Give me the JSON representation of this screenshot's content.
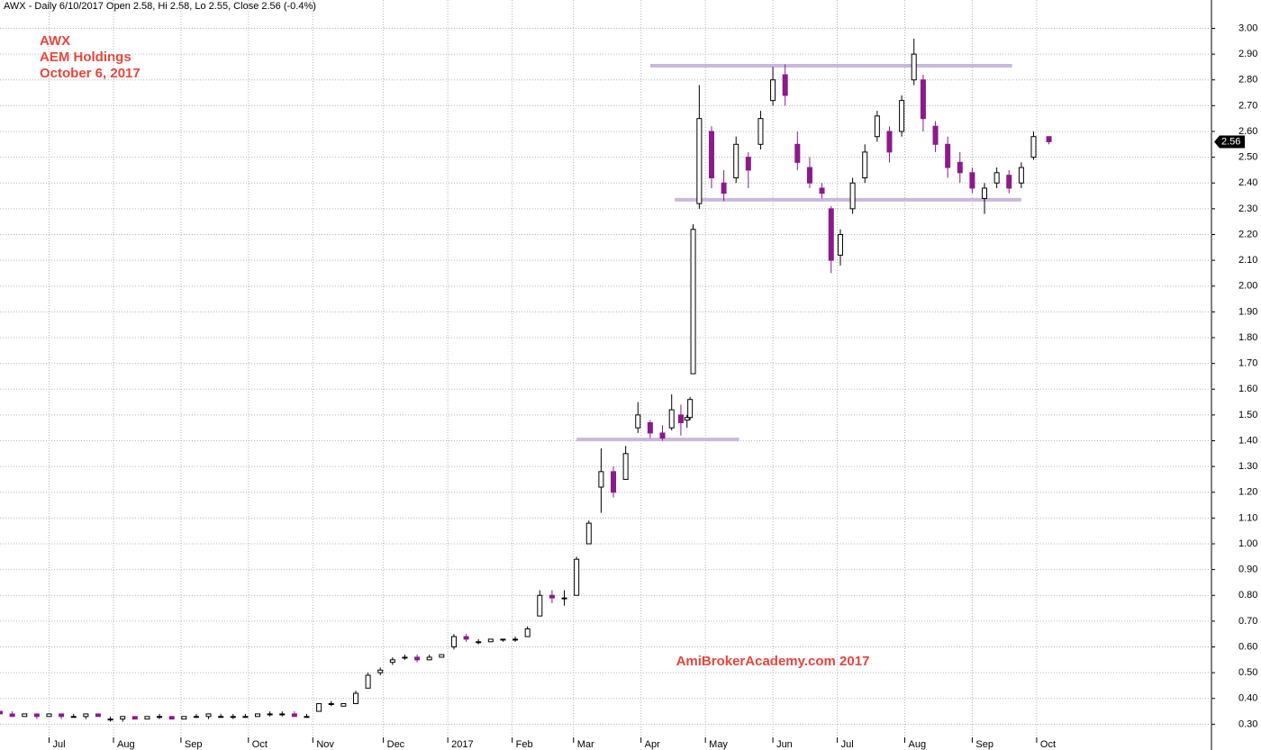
{
  "chart_data": {
    "type": "candlestick",
    "header": "AWX - Daily 6/10/2017 Open 2.58, Hi 2.58, Lo 2.55, Close 2.56 (-0.4%)",
    "annotations": [
      "AWX",
      "AEM Holdings",
      "October 6, 2017"
    ],
    "watermark": "AmiBrokerAcademy.com 2017",
    "up_color": "#ffffff",
    "down_color": "#8b1a8b",
    "level_color": "#c9b8dc",
    "grid": true,
    "xlim": [
      0,
      395
    ],
    "ylim": [
      0.2,
      3.11
    ],
    "xticks": [
      {
        "value": 16,
        "label": "Jul"
      },
      {
        "value": 37,
        "label": "Aug"
      },
      {
        "value": 59,
        "label": "Sep"
      },
      {
        "value": 81,
        "label": "Oct"
      },
      {
        "value": 102,
        "label": "Nov"
      },
      {
        "value": 125,
        "label": "Dec"
      },
      {
        "value": 146,
        "label": "2017"
      },
      {
        "value": 167,
        "label": "Feb"
      },
      {
        "value": 187,
        "label": "Mar"
      },
      {
        "value": 209,
        "label": "Apr"
      },
      {
        "value": 230,
        "label": "May"
      },
      {
        "value": 252,
        "label": "Jun"
      },
      {
        "value": 273,
        "label": "Jul"
      },
      {
        "value": 295,
        "label": "Aug"
      },
      {
        "value": 317,
        "label": "Sep"
      },
      {
        "value": 338,
        "label": "Oct"
      }
    ],
    "yticks": [
      {
        "value": 0.3,
        "label": "0.30"
      },
      {
        "value": 0.4,
        "label": "0.40"
      },
      {
        "value": 0.5,
        "label": "0.50"
      },
      {
        "value": 0.6,
        "label": "0.60"
      },
      {
        "value": 0.7,
        "label": "0.70"
      },
      {
        "value": 0.8,
        "label": "0.80"
      },
      {
        "value": 0.9,
        "label": "0.90"
      },
      {
        "value": 1.0,
        "label": "1.00"
      },
      {
        "value": 1.1,
        "label": "1.10"
      },
      {
        "value": 1.2,
        "label": "1.20"
      },
      {
        "value": 1.3,
        "label": "1.30"
      },
      {
        "value": 1.4,
        "label": "1.40"
      },
      {
        "value": 1.5,
        "label": "1.50"
      },
      {
        "value": 1.6,
        "label": "1.60"
      },
      {
        "value": 1.7,
        "label": "1.70"
      },
      {
        "value": 1.8,
        "label": "1.80"
      },
      {
        "value": 1.9,
        "label": "1.90"
      },
      {
        "value": 2.0,
        "label": "2.00"
      },
      {
        "value": 2.1,
        "label": "2.10"
      },
      {
        "value": 2.2,
        "label": "2.20"
      },
      {
        "value": 2.3,
        "label": "2.30"
      },
      {
        "value": 2.4,
        "label": "2.40"
      },
      {
        "value": 2.5,
        "label": "2.50"
      },
      {
        "value": 2.6,
        "label": "2.60"
      },
      {
        "value": 2.7,
        "label": "2.70"
      },
      {
        "value": 2.8,
        "label": "2.80"
      },
      {
        "value": 2.9,
        "label": "2.90"
      },
      {
        "value": 3.0,
        "label": "3.00"
      }
    ],
    "levels": [
      {
        "value": 1.405,
        "x": [
          188,
          241
        ]
      },
      {
        "value": 2.335,
        "x": [
          220,
          333
        ]
      },
      {
        "value": 2.855,
        "x": [
          212,
          330
        ]
      }
    ],
    "candles": [
      {
        "x": 0,
        "open": 0.35,
        "high": 0.35,
        "low": 0.34,
        "close": 0.34
      },
      {
        "x": 4,
        "open": 0.34,
        "high": 0.35,
        "low": 0.33,
        "close": 0.33
      },
      {
        "x": 8,
        "open": 0.33,
        "high": 0.34,
        "low": 0.33,
        "close": 0.34
      },
      {
        "x": 12,
        "open": 0.34,
        "high": 0.34,
        "low": 0.32,
        "close": 0.33
      },
      {
        "x": 16,
        "open": 0.33,
        "high": 0.34,
        "low": 0.33,
        "close": 0.34
      },
      {
        "x": 20,
        "open": 0.34,
        "high": 0.34,
        "low": 0.32,
        "close": 0.33
      },
      {
        "x": 24,
        "open": 0.33,
        "high": 0.34,
        "low": 0.33,
        "close": 0.33
      },
      {
        "x": 28,
        "open": 0.33,
        "high": 0.34,
        "low": 0.32,
        "close": 0.34
      },
      {
        "x": 32,
        "open": 0.34,
        "high": 0.34,
        "low": 0.33,
        "close": 0.33
      },
      {
        "x": 36,
        "open": 0.32,
        "high": 0.33,
        "low": 0.31,
        "close": 0.32
      },
      {
        "x": 40,
        "open": 0.32,
        "high": 0.33,
        "low": 0.31,
        "close": 0.33
      },
      {
        "x": 44,
        "open": 0.33,
        "high": 0.33,
        "low": 0.32,
        "close": 0.32
      },
      {
        "x": 48,
        "open": 0.32,
        "high": 0.33,
        "low": 0.32,
        "close": 0.33
      },
      {
        "x": 52,
        "open": 0.33,
        "high": 0.34,
        "low": 0.32,
        "close": 0.33
      },
      {
        "x": 56,
        "open": 0.33,
        "high": 0.33,
        "low": 0.32,
        "close": 0.32
      },
      {
        "x": 60,
        "open": 0.32,
        "high": 0.33,
        "low": 0.32,
        "close": 0.33
      },
      {
        "x": 64,
        "open": 0.33,
        "high": 0.34,
        "low": 0.33,
        "close": 0.33
      },
      {
        "x": 68,
        "open": 0.33,
        "high": 0.34,
        "low": 0.32,
        "close": 0.34
      },
      {
        "x": 72,
        "open": 0.33,
        "high": 0.34,
        "low": 0.33,
        "close": 0.33
      },
      {
        "x": 76,
        "open": 0.33,
        "high": 0.34,
        "low": 0.32,
        "close": 0.33
      },
      {
        "x": 80,
        "open": 0.33,
        "high": 0.34,
        "low": 0.33,
        "close": 0.33
      },
      {
        "x": 84,
        "open": 0.33,
        "high": 0.34,
        "low": 0.33,
        "close": 0.34
      },
      {
        "x": 88,
        "open": 0.34,
        "high": 0.35,
        "low": 0.33,
        "close": 0.34
      },
      {
        "x": 92,
        "open": 0.34,
        "high": 0.35,
        "low": 0.33,
        "close": 0.34
      },
      {
        "x": 96,
        "open": 0.34,
        "high": 0.35,
        "low": 0.33,
        "close": 0.33
      },
      {
        "x": 100,
        "open": 0.33,
        "high": 0.34,
        "low": 0.33,
        "close": 0.33
      },
      {
        "x": 104,
        "open": 0.35,
        "high": 0.38,
        "low": 0.35,
        "close": 0.38
      },
      {
        "x": 108,
        "open": 0.38,
        "high": 0.39,
        "low": 0.37,
        "close": 0.38
      },
      {
        "x": 112,
        "open": 0.37,
        "high": 0.38,
        "low": 0.37,
        "close": 0.38
      },
      {
        "x": 116,
        "open": 0.38,
        "high": 0.43,
        "low": 0.38,
        "close": 0.42
      },
      {
        "x": 120,
        "open": 0.44,
        "high": 0.5,
        "low": 0.44,
        "close": 0.49
      },
      {
        "x": 124,
        "open": 0.5,
        "high": 0.52,
        "low": 0.49,
        "close": 0.51
      },
      {
        "x": 128,
        "open": 0.54,
        "high": 0.56,
        "low": 0.53,
        "close": 0.55
      },
      {
        "x": 132,
        "open": 0.56,
        "high": 0.57,
        "low": 0.55,
        "close": 0.56
      },
      {
        "x": 136,
        "open": 0.56,
        "high": 0.57,
        "low": 0.54,
        "close": 0.55
      },
      {
        "x": 140,
        "open": 0.55,
        "high": 0.57,
        "low": 0.55,
        "close": 0.56
      },
      {
        "x": 144,
        "open": 0.56,
        "high": 0.57,
        "low": 0.56,
        "close": 0.57
      },
      {
        "x": 148,
        "open": 0.6,
        "high": 0.65,
        "low": 0.59,
        "close": 0.64
      },
      {
        "x": 152,
        "open": 0.64,
        "high": 0.65,
        "low": 0.62,
        "close": 0.63
      },
      {
        "x": 156,
        "open": 0.62,
        "high": 0.63,
        "low": 0.61,
        "close": 0.62
      },
      {
        "x": 160,
        "open": 0.62,
        "high": 0.63,
        "low": 0.62,
        "close": 0.63
      },
      {
        "x": 164,
        "open": 0.63,
        "high": 0.63,
        "low": 0.62,
        "close": 0.63
      },
      {
        "x": 168,
        "open": 0.63,
        "high": 0.64,
        "low": 0.62,
        "close": 0.63
      },
      {
        "x": 172,
        "open": 0.64,
        "high": 0.68,
        "low": 0.64,
        "close": 0.67
      },
      {
        "x": 176,
        "open": 0.72,
        "high": 0.82,
        "low": 0.72,
        "close": 0.8
      },
      {
        "x": 180,
        "open": 0.8,
        "high": 0.82,
        "low": 0.77,
        "close": 0.79
      },
      {
        "x": 184,
        "open": 0.79,
        "high": 0.82,
        "low": 0.76,
        "close": 0.79
      },
      {
        "x": 188,
        "open": 0.8,
        "high": 0.95,
        "low": 0.8,
        "close": 0.94
      },
      {
        "x": 192,
        "open": 1.0,
        "high": 1.09,
        "low": 1.0,
        "close": 1.08
      },
      {
        "x": 196,
        "open": 1.22,
        "high": 1.37,
        "low": 1.12,
        "close": 1.28
      },
      {
        "x": 200,
        "open": 1.28,
        "high": 1.3,
        "low": 1.18,
        "close": 1.2
      },
      {
        "x": 204,
        "open": 1.25,
        "high": 1.38,
        "low": 1.25,
        "close": 1.35
      },
      {
        "x": 208,
        "open": 1.45,
        "high": 1.55,
        "low": 1.43,
        "close": 1.5
      },
      {
        "x": 212,
        "open": 1.47,
        "high": 1.48,
        "low": 1.41,
        "close": 1.43
      },
      {
        "x": 216,
        "open": 1.43,
        "high": 1.46,
        "low": 1.4,
        "close": 1.41
      },
      {
        "x": 219,
        "open": 1.45,
        "high": 1.58,
        "low": 1.44,
        "close": 1.52
      },
      {
        "x": 222,
        "open": 1.5,
        "high": 1.54,
        "low": 1.42,
        "close": 1.47
      },
      {
        "x": 224,
        "open": 1.48,
        "high": 1.5,
        "low": 1.45,
        "close": 1.49
      },
      {
        "x": 225,
        "open": 1.49,
        "high": 1.57,
        "low": 1.48,
        "close": 1.56
      },
      {
        "x": 226,
        "open": 1.66,
        "high": 2.24,
        "low": 1.66,
        "close": 2.22
      },
      {
        "x": 228,
        "open": 2.32,
        "high": 2.78,
        "low": 2.3,
        "close": 2.65
      },
      {
        "x": 232,
        "open": 2.6,
        "high": 2.62,
        "low": 2.38,
        "close": 2.42
      },
      {
        "x": 236,
        "open": 2.4,
        "high": 2.45,
        "low": 2.33,
        "close": 2.36
      },
      {
        "x": 240,
        "open": 2.42,
        "high": 2.58,
        "low": 2.4,
        "close": 2.55
      },
      {
        "x": 244,
        "open": 2.5,
        "high": 2.52,
        "low": 2.38,
        "close": 2.45
      },
      {
        "x": 248,
        "open": 2.55,
        "high": 2.68,
        "low": 2.53,
        "close": 2.65
      },
      {
        "x": 252,
        "open": 2.72,
        "high": 2.85,
        "low": 2.7,
        "close": 2.8
      },
      {
        "x": 256,
        "open": 2.82,
        "high": 2.86,
        "low": 2.7,
        "close": 2.74
      },
      {
        "x": 260,
        "open": 2.55,
        "high": 2.6,
        "low": 2.45,
        "close": 2.48
      },
      {
        "x": 264,
        "open": 2.46,
        "high": 2.5,
        "low": 2.38,
        "close": 2.4
      },
      {
        "x": 268,
        "open": 2.38,
        "high": 2.4,
        "low": 2.34,
        "close": 2.36
      },
      {
        "x": 271,
        "open": 2.3,
        "high": 2.31,
        "low": 2.05,
        "close": 2.1
      },
      {
        "x": 274,
        "open": 2.12,
        "high": 2.22,
        "low": 2.08,
        "close": 2.2
      },
      {
        "x": 278,
        "open": 2.3,
        "high": 2.42,
        "low": 2.28,
        "close": 2.4
      },
      {
        "x": 282,
        "open": 2.42,
        "high": 2.55,
        "low": 2.4,
        "close": 2.52
      },
      {
        "x": 286,
        "open": 2.58,
        "high": 2.68,
        "low": 2.56,
        "close": 2.66
      },
      {
        "x": 290,
        "open": 2.6,
        "high": 2.62,
        "low": 2.48,
        "close": 2.52
      },
      {
        "x": 294,
        "open": 2.6,
        "high": 2.74,
        "low": 2.58,
        "close": 2.72
      },
      {
        "x": 298,
        "open": 2.8,
        "high": 2.96,
        "low": 2.78,
        "close": 2.9
      },
      {
        "x": 301,
        "open": 2.8,
        "high": 2.82,
        "low": 2.6,
        "close": 2.65
      },
      {
        "x": 305,
        "open": 2.62,
        "high": 2.64,
        "low": 2.52,
        "close": 2.55
      },
      {
        "x": 309,
        "open": 2.55,
        "high": 2.58,
        "low": 2.42,
        "close": 2.46
      },
      {
        "x": 313,
        "open": 2.48,
        "high": 2.52,
        "low": 2.4,
        "close": 2.44
      },
      {
        "x": 317,
        "open": 2.44,
        "high": 2.46,
        "low": 2.36,
        "close": 2.38
      },
      {
        "x": 321,
        "open": 2.34,
        "high": 2.4,
        "low": 2.28,
        "close": 2.38
      },
      {
        "x": 325,
        "open": 2.4,
        "high": 2.46,
        "low": 2.38,
        "close": 2.44
      },
      {
        "x": 329,
        "open": 2.43,
        "high": 2.45,
        "low": 2.36,
        "close": 2.38
      },
      {
        "x": 333,
        "open": 2.4,
        "high": 2.48,
        "low": 2.38,
        "close": 2.46
      },
      {
        "x": 337,
        "open": 2.5,
        "high": 2.6,
        "low": 2.49,
        "close": 2.58
      },
      {
        "x": 342,
        "open": 2.58,
        "high": 2.58,
        "low": 2.55,
        "close": 2.56
      }
    ]
  }
}
